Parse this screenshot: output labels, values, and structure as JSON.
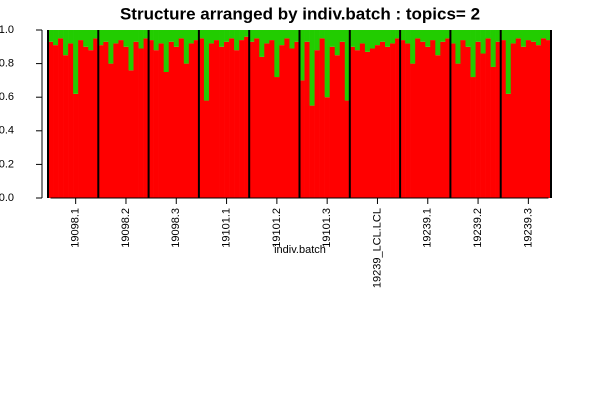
{
  "chart_data": {
    "type": "stacked_bar",
    "title": "Structure arranged by indiv.batch : topics= 2",
    "xlabel": "indiv.batch",
    "categories": [
      null,
      null,
      null,
      null,
      null,
      "19098.1",
      null,
      null,
      null,
      null,
      null,
      null,
      null,
      null,
      null,
      "19098.2",
      null,
      null,
      null,
      null,
      null,
      null,
      null,
      null,
      null,
      "19098.3",
      null,
      null,
      null,
      null,
      null,
      null,
      null,
      null,
      null,
      "19101.1",
      null,
      null,
      null,
      null,
      null,
      null,
      null,
      null,
      null,
      "19101.2",
      null,
      null,
      null,
      null,
      null,
      null,
      null,
      null,
      null,
      "19101.3",
      null,
      null,
      null,
      null,
      null,
      null,
      null,
      null,
      null,
      "19239_LCL.LCL",
      null,
      null,
      null,
      null,
      null,
      null,
      null,
      null,
      null,
      "19239.1",
      null,
      null,
      null,
      null,
      null,
      null,
      null,
      null,
      null,
      "19239.2",
      null,
      null,
      null,
      null,
      null,
      null,
      null,
      null,
      null,
      "19239.3",
      null,
      null,
      null,
      null
    ],
    "series": [
      {
        "color": "#ff0000",
        "values": [
          0.93,
          0.91,
          0.95,
          0.85,
          0.92,
          0.62,
          0.94,
          0.9,
          0.88,
          0.95,
          0.91,
          0.93,
          0.8,
          0.92,
          0.94,
          0.9,
          0.76,
          0.93,
          0.89,
          0.95,
          0.94,
          0.88,
          0.92,
          0.75,
          0.93,
          0.9,
          0.95,
          0.8,
          0.92,
          0.94,
          0.95,
          0.58,
          0.92,
          0.94,
          0.9,
          0.93,
          0.95,
          0.88,
          0.94,
          0.96,
          0.93,
          0.95,
          0.84,
          0.92,
          0.94,
          0.72,
          0.91,
          0.95,
          0.89,
          0.93,
          0.7,
          0.93,
          0.55,
          0.88,
          0.95,
          0.6,
          0.9,
          0.85,
          0.93,
          0.58,
          0.9,
          0.88,
          0.92,
          0.87,
          0.89,
          0.91,
          0.93,
          0.9,
          0.92,
          0.95,
          0.94,
          0.92,
          0.8,
          0.95,
          0.93,
          0.9,
          0.94,
          0.85,
          0.93,
          0.95,
          0.92,
          0.8,
          0.94,
          0.9,
          0.72,
          0.93,
          0.86,
          0.95,
          0.78,
          0.93,
          0.94,
          0.62,
          0.92,
          0.95,
          0.9,
          0.94,
          0.93,
          0.91,
          0.95,
          0.94
        ]
      },
      {
        "color": "#22cc00",
        "values": [
          0.07,
          0.09,
          0.05,
          0.15,
          0.08,
          0.38,
          0.06,
          0.1,
          0.12,
          0.05,
          0.09,
          0.07,
          0.2,
          0.08,
          0.06,
          0.1,
          0.24,
          0.07,
          0.11,
          0.05,
          0.06,
          0.12,
          0.08,
          0.25,
          0.07,
          0.1,
          0.05,
          0.2,
          0.08,
          0.06,
          0.05,
          0.42,
          0.08,
          0.06,
          0.1,
          0.07,
          0.05,
          0.12,
          0.06,
          0.04,
          0.07,
          0.05,
          0.16,
          0.08,
          0.06,
          0.28,
          0.09,
          0.05,
          0.11,
          0.07,
          0.3,
          0.07,
          0.45,
          0.12,
          0.05,
          0.4,
          0.1,
          0.15,
          0.07,
          0.42,
          0.1,
          0.12,
          0.08,
          0.13,
          0.11,
          0.09,
          0.07,
          0.1,
          0.08,
          0.05,
          0.06,
          0.08,
          0.2,
          0.05,
          0.07,
          0.1,
          0.06,
          0.15,
          0.07,
          0.05,
          0.08,
          0.2,
          0.06,
          0.1,
          0.28,
          0.07,
          0.14,
          0.05,
          0.22,
          0.07,
          0.06,
          0.38,
          0.08,
          0.05,
          0.1,
          0.06,
          0.07,
          0.09,
          0.05,
          0.06
        ]
      }
    ],
    "ylim": [
      0,
      1
    ],
    "yticks": [
      {
        "value": 0,
        "label": "0.0"
      },
      {
        "value": 0.2,
        "label": "0.2"
      },
      {
        "value": 0.4,
        "label": "0.4"
      },
      {
        "value": 0.6,
        "label": "0.6"
      },
      {
        "value": 0.8,
        "label": "0.8"
      },
      {
        "value": 1,
        "label": "1.0"
      }
    ]
  }
}
